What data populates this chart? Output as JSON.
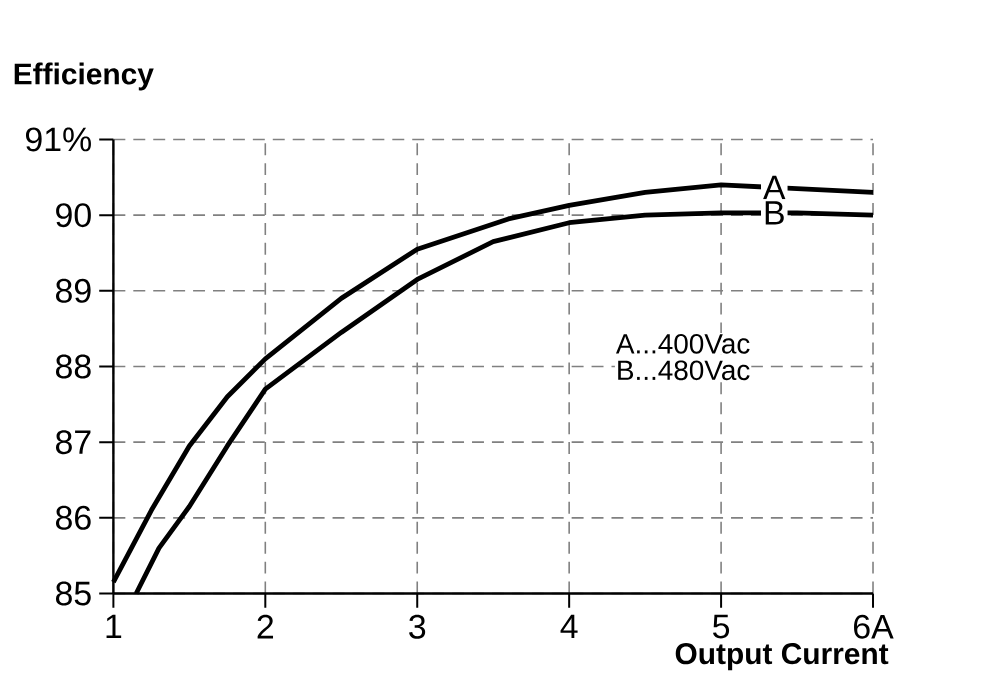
{
  "chart_data": {
    "type": "line",
    "xlabel": "Output Current",
    "ylabel": "Efficiency",
    "xlim": [
      1,
      6
    ],
    "ylim": [
      85,
      91
    ],
    "xticks": [
      1,
      2,
      3,
      4,
      5,
      {
        "value": 6,
        "label": "6A"
      }
    ],
    "yticks": [
      85,
      86,
      87,
      88,
      89,
      90,
      {
        "value": 91,
        "label": "91%"
      }
    ],
    "grid": true,
    "line_style": "solid",
    "marker": "none",
    "series": [
      {
        "name": "A",
        "color": "#000000",
        "x": [
          1,
          1.25,
          1.5,
          1.75,
          2,
          2.5,
          3,
          3.6,
          4,
          4.5,
          5,
          5.5,
          6
        ],
        "values": [
          85.15,
          86.1,
          86.95,
          87.6,
          88.1,
          88.9,
          89.55,
          89.95,
          90.13,
          90.3,
          90.4,
          90.35,
          90.3
        ]
      },
      {
        "name": "B",
        "color": "#000000",
        "x": [
          1.15,
          1.3,
          1.5,
          1.75,
          2,
          2.5,
          3,
          3.5,
          4,
          4.5,
          5,
          5.5,
          6
        ],
        "values": [
          85,
          85.6,
          86.15,
          86.95,
          87.7,
          88.45,
          89.15,
          89.65,
          89.9,
          90.0,
          90.03,
          90.03,
          90.0
        ]
      }
    ],
    "annotations": [
      "A...400Vac",
      "B...480Vac"
    ]
  }
}
